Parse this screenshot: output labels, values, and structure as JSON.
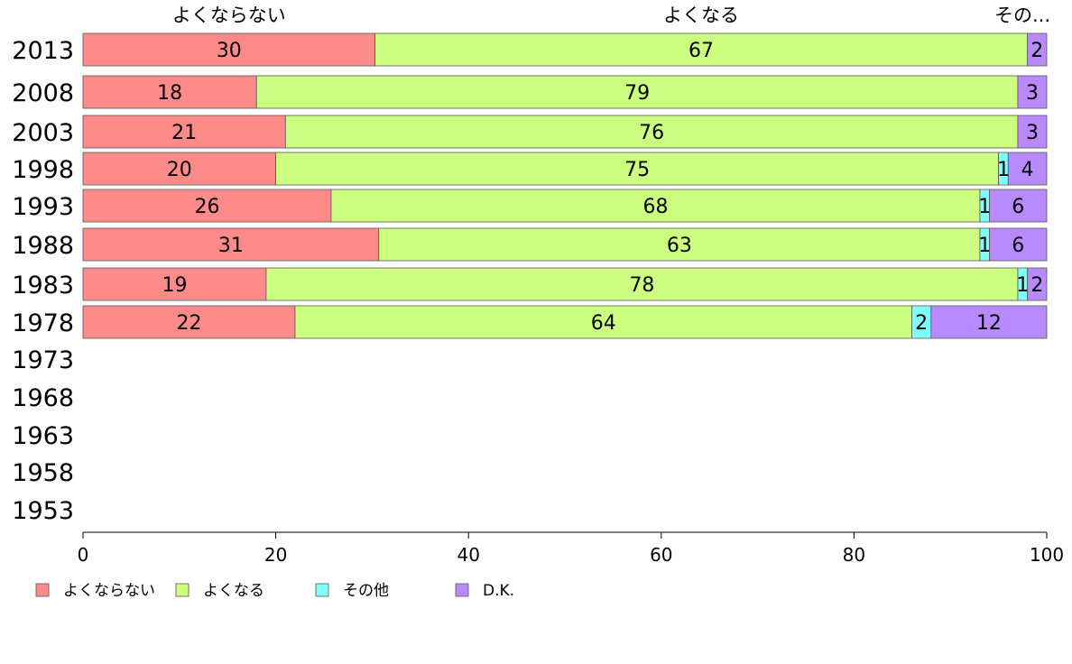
{
  "chart_data": {
    "type": "bar",
    "orientation": "horizontal",
    "stacked": true,
    "categories": [
      "2013",
      "2008",
      "2003",
      "1998",
      "1993",
      "1988",
      "1983",
      "1978",
      "1973",
      "1968",
      "1963",
      "1958",
      "1953"
    ],
    "series": [
      {
        "name": "よくならない",
        "color": "#ff8a8a",
        "values": [
          30,
          18,
          21,
          20,
          26,
          31,
          19,
          22,
          null,
          null,
          null,
          null,
          null
        ]
      },
      {
        "name": "よくなる",
        "color": "#ccff80",
        "values": [
          67,
          79,
          76,
          75,
          68,
          63,
          78,
          64,
          null,
          null,
          null,
          null,
          null
        ]
      },
      {
        "name": "その他",
        "color": "#80ffff",
        "values": [
          0,
          0,
          0,
          1,
          1,
          1,
          1,
          2,
          null,
          null,
          null,
          null,
          null
        ]
      },
      {
        "name": "D.K.",
        "color": "#b98aff",
        "values": [
          2,
          3,
          3,
          4,
          6,
          6,
          2,
          12,
          null,
          null,
          null,
          null,
          null
        ]
      }
    ],
    "top_labels": [
      "よくならない",
      "よくなる",
      "その..."
    ],
    "xlim": [
      0,
      100
    ],
    "xticks": [
      0,
      20,
      40,
      60,
      80,
      100
    ],
    "grid": false,
    "legend_position": "bottom-left"
  }
}
